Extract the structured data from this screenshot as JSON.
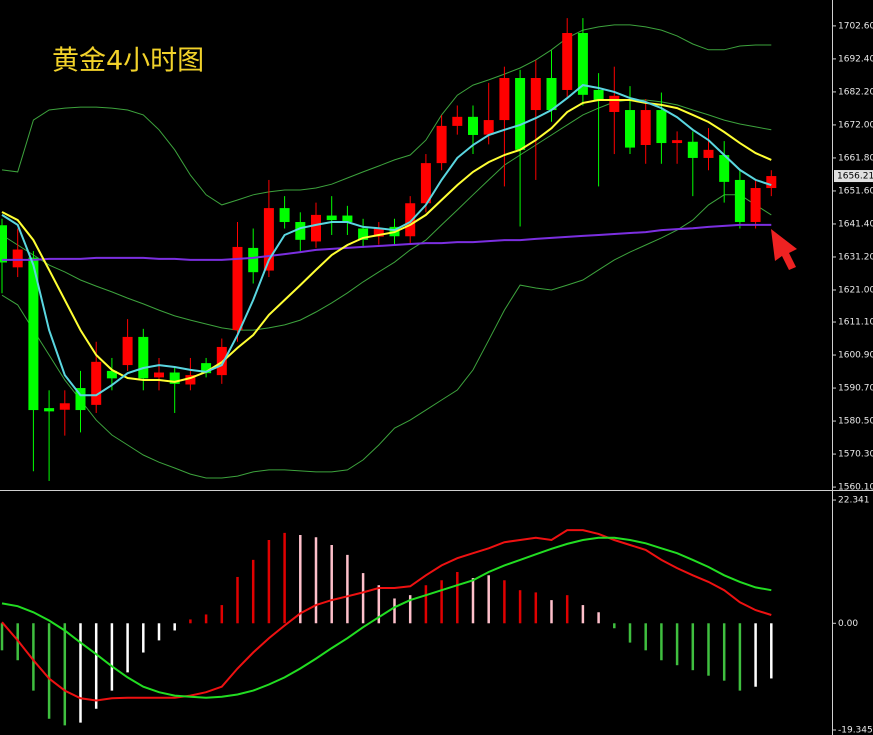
{
  "chart_data": [
    {
      "type": "candlestick",
      "title": "黄金4小时图",
      "up_color": "#ff0000",
      "down_color": "#00ff00",
      "ylim": [
        1559.2,
        1710.6
      ],
      "yticks": [
        {
          "value": 1702.6,
          "label": "1702.60"
        },
        {
          "value": 1692.4,
          "label": "1692.40"
        },
        {
          "value": 1682.2,
          "label": "1682.20"
        },
        {
          "value": 1672,
          "label": "1672.00"
        },
        {
          "value": 1661.8,
          "label": "1661.80"
        },
        {
          "value": 1651.6,
          "label": "1651.60"
        },
        {
          "value": 1641.4,
          "label": "1641.40"
        },
        {
          "value": 1631.2,
          "label": "1631.20"
        },
        {
          "value": 1621,
          "label": "1621.00"
        },
        {
          "value": 1611.1,
          "label": "1611.10"
        },
        {
          "value": 1600.9,
          "label": "1600.90"
        },
        {
          "value": 1590.7,
          "label": "1590.70"
        },
        {
          "value": 1580.5,
          "label": "1580.50"
        },
        {
          "value": 1570.3,
          "label": "1570.30"
        },
        {
          "value": 1560.1,
          "label": "1560.10"
        }
      ],
      "last_price": 1656.21,
      "open": [
        1641,
        1628,
        1631,
        1584.5,
        1584,
        1590.7,
        1585.5,
        1596,
        1597.8,
        1606.5,
        1594,
        1595.5,
        1591.8,
        1598.4,
        1594.7,
        1608.6,
        1634,
        1627,
        1646.3,
        1642,
        1636,
        1644,
        1644,
        1640,
        1637.5,
        1640.5,
        1637.6,
        1647.8,
        1660.2,
        1671.7,
        1674.5,
        1669,
        1673.5,
        1686.5,
        1676.6,
        1686.5,
        1682.8,
        1700.4,
        1682.8,
        1676,
        1676.6,
        1665.8,
        1676.6,
        1666.4,
        1666.8,
        1661.8,
        1662.7,
        1655,
        1642,
        1652.5
      ],
      "high": [
        1643,
        1640,
        1633,
        1590,
        1590,
        1596,
        1605,
        1600,
        1612,
        1609,
        1600,
        1597,
        1600,
        1600,
        1606,
        1642,
        1640,
        1655,
        1650,
        1645,
        1648,
        1650,
        1647,
        1643,
        1642,
        1643,
        1650,
        1663,
        1675,
        1678,
        1678,
        1685,
        1690,
        1689,
        1692,
        1695,
        1705,
        1705,
        1688,
        1690,
        1684,
        1680,
        1682,
        1670,
        1670,
        1671,
        1667,
        1658,
        1655,
        1658
      ],
      "low": [
        1620,
        1625,
        1565,
        1562,
        1576,
        1577,
        1583,
        1590,
        1596,
        1590,
        1590,
        1583,
        1590,
        1594,
        1592,
        1605,
        1623,
        1625,
        1640,
        1633,
        1634,
        1638,
        1638,
        1634,
        1635,
        1635,
        1635,
        1645,
        1658,
        1669,
        1663,
        1666,
        1653,
        1640.6,
        1655,
        1673,
        1680,
        1678,
        1653,
        1663,
        1663,
        1660,
        1660,
        1660,
        1650,
        1658,
        1648,
        1640,
        1640,
        1650
      ],
      "close": [
        1629.5,
        1633.5,
        1583.9,
        1583.5,
        1586,
        1583.9,
        1598.8,
        1593.7,
        1606.5,
        1593.7,
        1595.5,
        1592,
        1594.7,
        1595.3,
        1603.4,
        1634.3,
        1626.5,
        1646.3,
        1642,
        1636.5,
        1644.2,
        1642.6,
        1642,
        1636.5,
        1640,
        1637.6,
        1647.8,
        1660.2,
        1671.7,
        1674.5,
        1668.9,
        1673.5,
        1686.5,
        1664.3,
        1686.5,
        1676.6,
        1700.4,
        1681.3,
        1679.7,
        1681,
        1665,
        1676.6,
        1666.4,
        1667.3,
        1661.8,
        1664.3,
        1654.4,
        1642,
        1652.5,
        1656.2
      ],
      "series": [
        {
          "color": "#7b2fe0",
          "values": [
            1630.3,
            1630.3,
            1630.3,
            1630.6,
            1630.6,
            1630.6,
            1630.9,
            1630.9,
            1630.9,
            1630.9,
            1630.6,
            1630.6,
            1630.3,
            1630.3,
            1630.3,
            1630.6,
            1630.9,
            1631.5,
            1632.1,
            1632.7,
            1633.4,
            1633.7,
            1634.0,
            1634.3,
            1634.6,
            1634.9,
            1635.2,
            1635.5,
            1635.5,
            1635.8,
            1635.8,
            1636.1,
            1636.4,
            1636.4,
            1636.8,
            1637.1,
            1637.4,
            1637.7,
            1638.0,
            1638.3,
            1638.6,
            1638.9,
            1639.5,
            1639.8,
            1640.1,
            1640.5,
            1640.8,
            1641.1,
            1641.1,
            1641.1
          ]
        },
        {
          "color": "#ffff33",
          "values": [
            1645.1,
            1642.6,
            1636.4,
            1627.2,
            1617.9,
            1608.6,
            1600.9,
            1596.3,
            1593.8,
            1593.2,
            1593.2,
            1592.6,
            1593.8,
            1595.7,
            1598.7,
            1603.1,
            1607.1,
            1613.3,
            1617.9,
            1622.5,
            1627.2,
            1631.8,
            1634.9,
            1637.1,
            1638.0,
            1638.9,
            1641.1,
            1644.2,
            1648.8,
            1653.4,
            1657.5,
            1660.5,
            1662.7,
            1664.3,
            1667.3,
            1671.0,
            1676.0,
            1678.8,
            1679.7,
            1679.7,
            1679.7,
            1678.8,
            1678.2,
            1677.2,
            1675.1,
            1672.9,
            1669.8,
            1666.4,
            1663.3,
            1661.2
          ]
        },
        {
          "color": "#5ad6e0",
          "values": [
            1644.2,
            1641.1,
            1628.7,
            1608.6,
            1594.7,
            1588.5,
            1588.5,
            1591.6,
            1595.3,
            1596.9,
            1597.8,
            1597.2,
            1596.3,
            1595.7,
            1597.8,
            1607.1,
            1617.9,
            1630.3,
            1638.0,
            1640.1,
            1641.1,
            1642.0,
            1642.0,
            1640.5,
            1640.1,
            1639.5,
            1642.0,
            1647.3,
            1655.0,
            1661.8,
            1665.8,
            1668.9,
            1670.5,
            1672.0,
            1674.1,
            1676.6,
            1680.3,
            1684.3,
            1683.4,
            1682.2,
            1680.3,
            1679.1,
            1677.2,
            1674.4,
            1670.5,
            1667.3,
            1662.7,
            1658.1,
            1655.0,
            1653.4
          ]
        }
      ],
      "bands": [
        {
          "color": "#3da33d",
          "values": [
            1658.1,
            1657.5,
            1673.5,
            1676.6,
            1677.2,
            1677.5,
            1677.5,
            1677.2,
            1676.6,
            1675.1,
            1670.5,
            1664.3,
            1656.5,
            1650.4,
            1647.3,
            1648.8,
            1650.4,
            1651.3,
            1651.9,
            1651.9,
            1652.5,
            1653.7,
            1655.6,
            1657.5,
            1659.3,
            1661.2,
            1662.7,
            1667.3,
            1675.1,
            1681.2,
            1684.3,
            1685.9,
            1687.7,
            1689.6,
            1692.1,
            1695.2,
            1698.9,
            1701.3,
            1702.3,
            1702.9,
            1702.9,
            1702.3,
            1701.3,
            1699.5,
            1697.0,
            1695.2,
            1695.2,
            1696.4,
            1696.7,
            1696.7
          ]
        },
        {
          "color": "#3da33d",
          "values": [
            1638.0,
            1634.9,
            1631.8,
            1628.7,
            1626.6,
            1624.1,
            1622.2,
            1620.4,
            1618.5,
            1616.7,
            1614.8,
            1613.0,
            1611.7,
            1610.5,
            1609.3,
            1608.6,
            1608.6,
            1609.3,
            1610.2,
            1611.7,
            1614.2,
            1617.0,
            1620.1,
            1623.5,
            1626.6,
            1629.6,
            1633.4,
            1636.4,
            1641.1,
            1645.7,
            1650.4,
            1655.0,
            1659.6,
            1662.7,
            1665.8,
            1668.9,
            1672.0,
            1675.1,
            1677.2,
            1679.1,
            1679.7,
            1679.7,
            1679.1,
            1678.2,
            1676.6,
            1675.1,
            1673.5,
            1672.3,
            1671.4,
            1670.5
          ]
        },
        {
          "color": "#3da33d",
          "values": [
            1619.4,
            1616.4,
            1608.6,
            1600.9,
            1593.2,
            1587.0,
            1580.8,
            1576.2,
            1573.1,
            1570.0,
            1567.8,
            1566.0,
            1564.1,
            1562.9,
            1562.9,
            1563.5,
            1564.8,
            1565.4,
            1565.4,
            1565.1,
            1564.8,
            1564.8,
            1565.4,
            1568.5,
            1573.1,
            1578.3,
            1580.8,
            1583.9,
            1587.0,
            1590.1,
            1596.3,
            1605.5,
            1614.8,
            1622.5,
            1621.6,
            1621.0,
            1622.5,
            1624.1,
            1627.2,
            1630.3,
            1632.7,
            1634.9,
            1637.1,
            1639.5,
            1642.6,
            1647.3,
            1650.4,
            1650.4,
            1647.3,
            1644.2
          ]
        }
      ]
    },
    {
      "type": "macd",
      "ylim": [
        -20.25,
        23.8
      ],
      "yticks": [
        22.341,
        {
          "value": 0,
          "label": "0.00"
        },
        -19.3455
      ],
      "values": [
        -4.9,
        -6.7,
        -12.2,
        -17.3,
        -18.5,
        -18,
        -15.5,
        -12.2,
        -8.9,
        -5.3,
        -3.1,
        -1.3,
        0.7,
        1.6,
        3.3,
        8.4,
        11.5,
        15.1,
        16.4,
        16,
        15.6,
        14.2,
        12.4,
        9.1,
        6.9,
        4.5,
        5.1,
        6.9,
        7.8,
        9.3,
        8.2,
        8.7,
        7.8,
        6,
        5.6,
        4.2,
        5.1,
        3.3,
        2,
        -0.9,
        -3.5,
        -4.9,
        -6.7,
        -7.6,
        -8.5,
        -9.5,
        -10.4,
        -12.2,
        -11.5,
        -10
      ],
      "colors": [
        "#3fbf3f",
        "#3fbf3f",
        "#3fbf3f",
        "#3fbf3f",
        "#3fbf3f",
        "#ffffff",
        "#ffffff",
        "#ffffff",
        "#ffffff",
        "#ffffff",
        "#ffffff",
        "#ffffff",
        "#e00000",
        "#e00000",
        "#e00000",
        "#e00000",
        "#e00000",
        "#e00000",
        "#e00000",
        "#ffc0cb",
        "#ffc0cb",
        "#ffc0cb",
        "#ffc0cb",
        "#ffc0cb",
        "#ffc0cb",
        "#ffc0cb",
        "#ffc0cb",
        "#e00000",
        "#e00000",
        "#e00000",
        "#ffc0cb",
        "#ffc0cb",
        "#e00000",
        "#e00000",
        "#e00000",
        "#ffc0cb",
        "#e00000",
        "#ffc0cb",
        "#ffc0cb",
        "#3fbf3f",
        "#3fbf3f",
        "#3fbf3f",
        "#3fbf3f",
        "#3fbf3f",
        "#3fbf3f",
        "#3fbf3f",
        "#3fbf3f",
        "#3fbf3f",
        "#ffffff",
        "#ffffff"
      ],
      "series": [
        {
          "color": "#ee1111",
          "values": [
            0.2,
            -3.1,
            -6.7,
            -10.0,
            -12.2,
            -13.6,
            -14.0,
            -13.6,
            -13.5,
            -13.5,
            -13.5,
            -13.5,
            -13.1,
            -12.5,
            -11.5,
            -8.2,
            -5.3,
            -2.7,
            -0.4,
            1.8,
            3.3,
            4.2,
            4.9,
            5.6,
            6.4,
            6.4,
            6.7,
            8.7,
            10.5,
            11.8,
            12.7,
            13.6,
            14.7,
            15.1,
            15.5,
            15.1,
            16.9,
            16.9,
            16.2,
            15.1,
            14.2,
            13.3,
            11.5,
            10.0,
            8.7,
            7.5,
            6.0,
            3.8,
            2.4,
            1.5
          ]
        },
        {
          "color": "#22dd22",
          "values": [
            3.6,
            3.1,
            2.0,
            0.5,
            -1.3,
            -3.5,
            -5.6,
            -7.8,
            -9.8,
            -11.5,
            -12.5,
            -13.1,
            -13.3,
            -13.5,
            -13.3,
            -12.9,
            -12.2,
            -11.1,
            -9.8,
            -8.2,
            -6.4,
            -4.5,
            -2.7,
            -0.7,
            1.1,
            2.9,
            4.2,
            5.1,
            6.0,
            6.9,
            7.8,
            9.3,
            10.5,
            11.5,
            12.5,
            13.5,
            14.4,
            15.1,
            15.5,
            15.5,
            15.1,
            14.5,
            13.6,
            12.7,
            11.5,
            10.2,
            8.7,
            7.5,
            6.5,
            6.0
          ]
        }
      ]
    }
  ]
}
